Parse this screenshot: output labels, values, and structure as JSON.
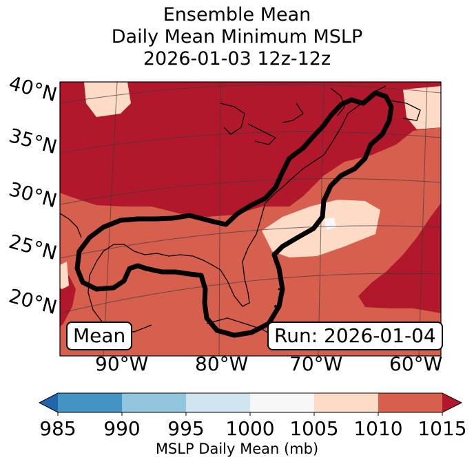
{
  "title": {
    "line1": "Ensemble Mean",
    "line2": "Daily Mean Minimum MSLP",
    "line3": "2026-01-03 12z-12z"
  },
  "map": {
    "lat_labels": [
      "40°N",
      "35°N",
      "30°N",
      "25°N",
      "20°N"
    ],
    "lon_labels": [
      "90°W",
      "80°W",
      "70°W",
      "60°W"
    ],
    "mean_box": "Mean",
    "run_box": "Run: 2026-01-04",
    "fill_levels": [
      {
        "range": "1000-1005",
        "color": "#f7f7f7"
      },
      {
        "range": "1005-1010",
        "color": "#fddbc7"
      },
      {
        "range": "1010-1015",
        "color": "#d6604d"
      },
      {
        "range": ">1015",
        "color": "#b2182b"
      }
    ],
    "contour_color": "#000000"
  },
  "colorbar": {
    "ticks": [
      "985",
      "990",
      "995",
      "1000",
      "1005",
      "1010",
      "1015"
    ],
    "colors": [
      "#2166ac",
      "#4393c3",
      "#92c5de",
      "#d1e5f0",
      "#f7f7f7",
      "#fddbc7",
      "#d6604d",
      "#b2182b"
    ],
    "label": "MSLP Daily Mean (mb)"
  }
}
